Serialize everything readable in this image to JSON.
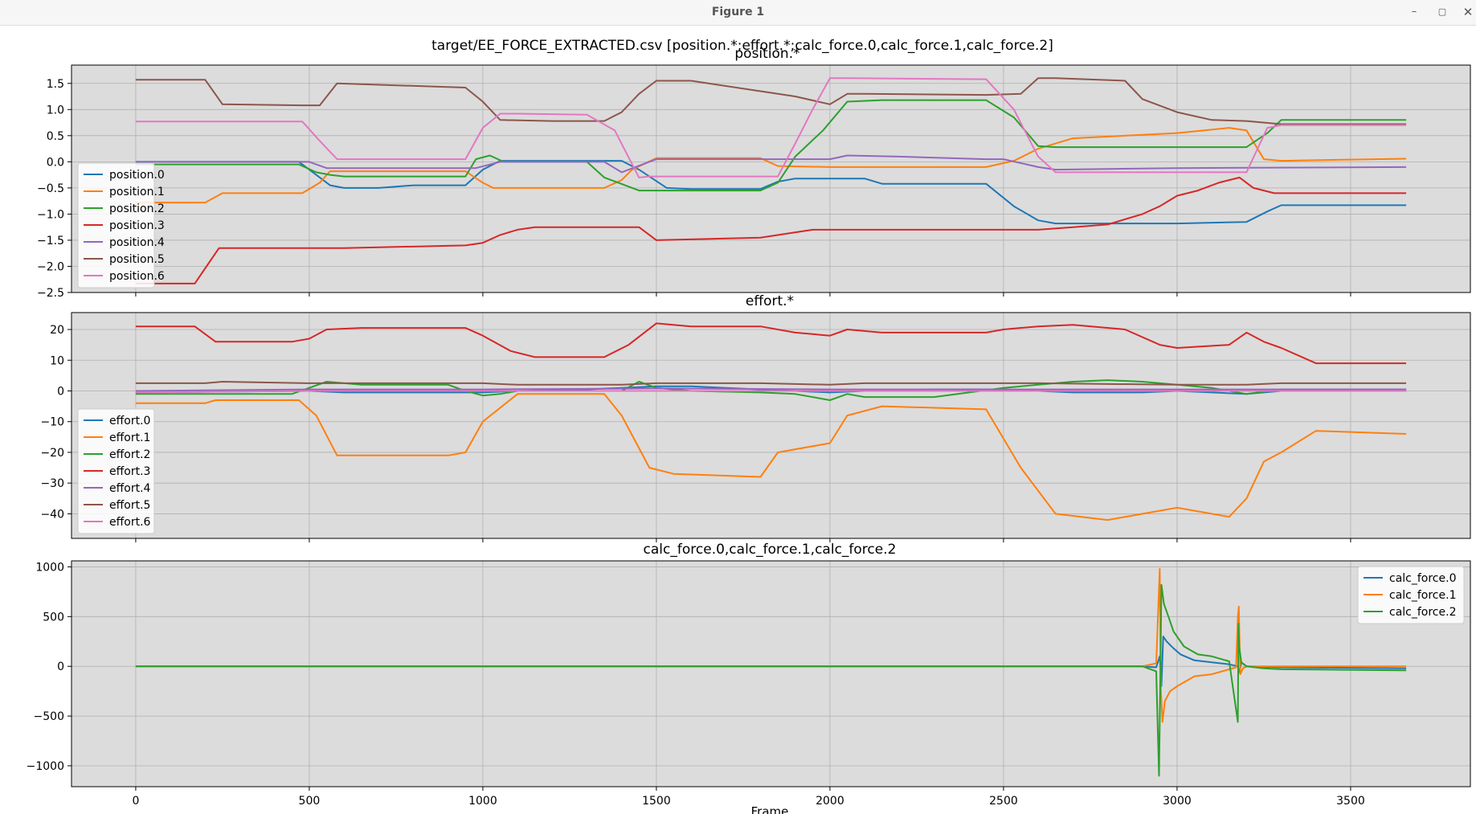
{
  "window": {
    "title": "Figure 1",
    "minimize_icon": "minimize-icon",
    "maximize_icon": "maximize-icon",
    "close_icon": "close-icon"
  },
  "figure": {
    "suptitle": "target/EE_FORCE_EXTRACTED.csv [position.*;effort.*;calc_force.0,calc_force.1,calc_force.2]",
    "xlabel": "Frame"
  },
  "colors": [
    "#1f77b4",
    "#ff7f0e",
    "#2ca02c",
    "#d62728",
    "#9467bd",
    "#8c564b",
    "#e377c2"
  ],
  "chart_data": [
    {
      "type": "line",
      "title": "position.*",
      "xlim": [
        -185,
        3845
      ],
      "ylim": [
        -2.5,
        1.85
      ],
      "xticks": [
        0,
        500,
        1000,
        1500,
        2000,
        2500,
        3000,
        3500
      ],
      "yticks": [
        -2.5,
        -2.0,
        -1.5,
        -1.0,
        -0.5,
        0.0,
        0.5,
        1.0,
        1.5
      ],
      "ytick_labels": [
        "−2.5",
        "−2.0",
        "−1.5",
        "−1.0",
        "−0.5",
        "0.0",
        "0.5",
        "1.0",
        "1.5"
      ],
      "grid": true,
      "legend": "left",
      "series": [
        {
          "name": "position.0",
          "x": [
            0,
            470,
            560,
            600,
            700,
            800,
            950,
            1000,
            1050,
            1400,
            1450,
            1530,
            1600,
            1800,
            1850,
            1900,
            2100,
            2150,
            2250,
            2450,
            2530,
            2600,
            2650,
            3000,
            3200,
            3260,
            3300,
            3660
          ],
          "y": [
            0,
            0,
            -0.45,
            -0.5,
            -0.5,
            -0.45,
            -0.45,
            -0.15,
            0.02,
            0.02,
            -0.15,
            -0.5,
            -0.52,
            -0.52,
            -0.38,
            -0.32,
            -0.32,
            -0.42,
            -0.42,
            -0.42,
            -0.85,
            -1.12,
            -1.18,
            -1.18,
            -1.15,
            -0.95,
            -0.83,
            -0.83
          ]
        },
        {
          "name": "position.1",
          "x": [
            0,
            200,
            250,
            480,
            530,
            560,
            950,
            1000,
            1030,
            1350,
            1400,
            1430,
            1500,
            1800,
            1850,
            2000,
            2450,
            2530,
            2600,
            2700,
            3000,
            3150,
            3200,
            3250,
            3300,
            3660
          ],
          "y": [
            -0.78,
            -0.78,
            -0.6,
            -0.6,
            -0.4,
            -0.18,
            -0.18,
            -0.4,
            -0.5,
            -0.5,
            -0.35,
            -0.15,
            0.07,
            0.07,
            -0.08,
            -0.1,
            -0.1,
            0.02,
            0.25,
            0.45,
            0.55,
            0.65,
            0.6,
            0.05,
            0.02,
            0.06
          ]
        },
        {
          "name": "position.2",
          "x": [
            0,
            470,
            520,
            560,
            600,
            950,
            980,
            1020,
            1060,
            1300,
            1350,
            1450,
            1500,
            1800,
            1850,
            1900,
            1980,
            2050,
            2150,
            2450,
            2530,
            2600,
            2650,
            3000,
            3200,
            3260,
            3300,
            3660
          ],
          "y": [
            -0.05,
            -0.05,
            -0.2,
            -0.25,
            -0.28,
            -0.28,
            0.05,
            0.12,
            0.0,
            0.0,
            -0.3,
            -0.55,
            -0.55,
            -0.55,
            -0.4,
            0.1,
            0.6,
            1.15,
            1.18,
            1.18,
            0.85,
            0.3,
            0.28,
            0.28,
            0.28,
            0.55,
            0.8,
            0.8
          ]
        },
        {
          "name": "position.3",
          "x": [
            0,
            170,
            240,
            300,
            600,
            950,
            1000,
            1050,
            1100,
            1150,
            1450,
            1500,
            1800,
            1950,
            2050,
            2150,
            2600,
            2700,
            2800,
            2900,
            2950,
            3000,
            3060,
            3120,
            3180,
            3220,
            3280,
            3660
          ],
          "y": [
            -2.33,
            -2.33,
            -1.65,
            -1.65,
            -1.65,
            -1.6,
            -1.55,
            -1.4,
            -1.3,
            -1.25,
            -1.25,
            -1.5,
            -1.45,
            -1.3,
            -1.3,
            -1.3,
            -1.3,
            -1.25,
            -1.2,
            -1.0,
            -0.85,
            -0.65,
            -0.55,
            -0.4,
            -0.3,
            -0.5,
            -0.6,
            -0.6
          ]
        },
        {
          "name": "position.4",
          "x": [
            0,
            500,
            550,
            980,
            1050,
            1350,
            1400,
            1500,
            1550,
            2000,
            2050,
            2200,
            2450,
            2500,
            2600,
            2650,
            3000,
            3660
          ],
          "y": [
            0,
            0,
            -0.12,
            -0.12,
            0.0,
            0.0,
            -0.2,
            0.05,
            0.05,
            0.05,
            0.12,
            0.1,
            0.05,
            0.05,
            -0.1,
            -0.15,
            -0.12,
            -0.1
          ]
        },
        {
          "name": "position.5",
          "x": [
            0,
            200,
            250,
            480,
            530,
            580,
            950,
            1000,
            1050,
            1200,
            1350,
            1400,
            1450,
            1500,
            1600,
            1850,
            1900,
            2000,
            2050,
            2100,
            2450,
            2550,
            2600,
            2650,
            2850,
            2900,
            3000,
            3100,
            3200,
            3300,
            3660
          ],
          "y": [
            1.57,
            1.57,
            1.1,
            1.08,
            1.08,
            1.5,
            1.42,
            1.15,
            0.8,
            0.78,
            0.78,
            0.95,
            1.3,
            1.55,
            1.55,
            1.3,
            1.25,
            1.1,
            1.3,
            1.3,
            1.28,
            1.3,
            1.6,
            1.6,
            1.55,
            1.2,
            0.95,
            0.8,
            0.78,
            0.72,
            0.72
          ]
        },
        {
          "name": "position.6",
          "x": [
            0,
            480,
            530,
            580,
            950,
            1000,
            1050,
            1100,
            1300,
            1380,
            1450,
            1480,
            1850,
            1900,
            1950,
            2000,
            2050,
            2450,
            2530,
            2600,
            2650,
            3000,
            3200,
            3260,
            3300,
            3660
          ],
          "y": [
            0.77,
            0.77,
            0.4,
            0.05,
            0.05,
            0.65,
            0.92,
            0.92,
            0.9,
            0.6,
            -0.3,
            -0.28,
            -0.28,
            0.35,
            1.0,
            1.6,
            1.6,
            1.58,
            1.0,
            0.1,
            -0.2,
            -0.2,
            -0.2,
            0.65,
            0.7,
            0.7
          ]
        }
      ]
    },
    {
      "type": "line",
      "title": "effort.*",
      "xlim": [
        -185,
        3845
      ],
      "ylim": [
        -48,
        25.5
      ],
      "xticks": [
        0,
        500,
        1000,
        1500,
        2000,
        2500,
        3000,
        3500
      ],
      "yticks": [
        -40,
        -30,
        -20,
        -10,
        0,
        10,
        20
      ],
      "ytick_labels": [
        "−40",
        "−30",
        "−20",
        "−10",
        "0",
        "10",
        "20"
      ],
      "grid": true,
      "legend": "left",
      "series": [
        {
          "name": "effort.0",
          "x": [
            0,
            500,
            600,
            900,
            1000,
            1100,
            1300,
            1400,
            1500,
            1600,
            1800,
            1900,
            2000,
            2100,
            2300,
            2500,
            2700,
            2900,
            3000,
            3100,
            3200,
            3300,
            3660
          ],
          "y": [
            -0.5,
            0,
            -0.5,
            -0.5,
            -0.5,
            0,
            0.5,
            1,
            1.5,
            1.5,
            0.5,
            0,
            -0.5,
            0,
            0.5,
            0.5,
            -0.5,
            -0.5,
            0,
            -0.5,
            -1,
            0,
            0
          ]
        },
        {
          "name": "effort.1",
          "x": [
            0,
            200,
            230,
            470,
            520,
            580,
            900,
            950,
            1000,
            1100,
            1350,
            1400,
            1480,
            1550,
            1800,
            1850,
            2000,
            2050,
            2150,
            2450,
            2550,
            2650,
            2800,
            3000,
            3150,
            3200,
            3250,
            3300,
            3400,
            3660
          ],
          "y": [
            -4,
            -4,
            -3,
            -3,
            -8,
            -21,
            -21,
            -20,
            -10,
            -1,
            -1,
            -8,
            -25,
            -27,
            -28,
            -20,
            -17,
            -8,
            -5,
            -6,
            -25,
            -40,
            -42,
            -38,
            -41,
            -35,
            -23,
            -20,
            -13,
            -14
          ]
        },
        {
          "name": "effort.2",
          "x": [
            0,
            450,
            500,
            550,
            650,
            900,
            950,
            1000,
            1050,
            1100,
            1400,
            1450,
            1500,
            1600,
            1800,
            1900,
            2000,
            2050,
            2100,
            2300,
            2500,
            2600,
            2700,
            2800,
            2900,
            3000,
            3100,
            3200,
            3300,
            3660
          ],
          "y": [
            -1,
            -1,
            1,
            3,
            2,
            2,
            0,
            -1.5,
            -1,
            0,
            0,
            3,
            1,
            0,
            -0.5,
            -1,
            -3,
            -1,
            -2,
            -2,
            1,
            2,
            3,
            3.5,
            3,
            2,
            1,
            -1,
            0.5,
            0.5
          ]
        },
        {
          "name": "effort.3",
          "x": [
            0,
            170,
            230,
            450,
            500,
            550,
            650,
            950,
            1000,
            1080,
            1150,
            1350,
            1420,
            1500,
            1600,
            1800,
            1900,
            2000,
            2050,
            2150,
            2450,
            2500,
            2600,
            2700,
            2850,
            2950,
            3000,
            3150,
            3200,
            3250,
            3300,
            3400,
            3660
          ],
          "y": [
            21,
            21,
            16,
            16,
            17,
            20,
            20.5,
            20.5,
            18,
            13,
            11,
            11,
            15,
            22,
            21,
            21,
            19,
            18,
            20,
            19,
            19,
            20,
            21,
            21.5,
            20,
            15,
            14,
            15,
            19,
            16,
            14,
            9,
            9
          ]
        },
        {
          "name": "effort.4",
          "x": [
            0,
            500,
            1000,
            1500,
            2000,
            2500,
            3000,
            3660
          ],
          "y": [
            0,
            0.5,
            0.5,
            0.8,
            0.5,
            0.5,
            0.5,
            0.5
          ]
        },
        {
          "name": "effort.5",
          "x": [
            0,
            200,
            250,
            500,
            700,
            1000,
            1100,
            1400,
            1500,
            1800,
            2000,
            2100,
            2500,
            2600,
            3000,
            3200,
            3300,
            3660
          ],
          "y": [
            2.5,
            2.5,
            3,
            2.5,
            2.5,
            2.5,
            2,
            2,
            2.5,
            2.5,
            2,
            2.5,
            2.5,
            2.5,
            2,
            2,
            2.5,
            2.5
          ]
        },
        {
          "name": "effort.6",
          "x": [
            0,
            500,
            1000,
            1500,
            2000,
            2500,
            3000,
            3660
          ],
          "y": [
            -0.5,
            0,
            0,
            0,
            0,
            0,
            0,
            0
          ]
        }
      ]
    },
    {
      "type": "line",
      "title": "calc_force.0,calc_force.1,calc_force.2",
      "xlim": [
        -185,
        3845
      ],
      "ylim": [
        -1210,
        1060
      ],
      "xticks": [
        0,
        500,
        1000,
        1500,
        2000,
        2500,
        3000,
        3500
      ],
      "xtick_labels": [
        "0",
        "500",
        "1000",
        "1500",
        "2000",
        "2500",
        "3000",
        "3500"
      ],
      "yticks": [
        -1000,
        -500,
        0,
        500,
        1000
      ],
      "ytick_labels": [
        "−1000",
        "−500",
        "0",
        "500",
        "1000"
      ],
      "grid": true,
      "legend": "top-right",
      "series": [
        {
          "name": "calc_force.0",
          "x": [
            0,
            2900,
            2940,
            2950,
            2955,
            2960,
            2970,
            2990,
            3010,
            3050,
            3100,
            3150,
            3175,
            3180,
            3185,
            3200,
            3300,
            3660
          ],
          "y": [
            0,
            0,
            -10,
            100,
            -200,
            300,
            250,
            180,
            120,
            60,
            40,
            20,
            0,
            -60,
            40,
            0,
            -10,
            -20
          ]
        },
        {
          "name": "calc_force.1",
          "x": [
            0,
            2900,
            2940,
            2950,
            2953,
            2958,
            2965,
            2980,
            3000,
            3050,
            3100,
            3150,
            3170,
            3175,
            3178,
            3182,
            3190,
            3200,
            3300,
            3660
          ],
          "y": [
            0,
            0,
            30,
            980,
            -200,
            -560,
            -350,
            -250,
            -200,
            -100,
            -80,
            -30,
            -10,
            500,
            600,
            -80,
            -20,
            0,
            0,
            0
          ]
        },
        {
          "name": "calc_force.2",
          "x": [
            0,
            2900,
            2940,
            2948,
            2951,
            2955,
            2962,
            2975,
            2990,
            3020,
            3060,
            3100,
            3150,
            3175,
            3177,
            3179,
            3185,
            3200,
            3250,
            3300,
            3660
          ],
          "y": [
            0,
            0,
            -50,
            -1100,
            -300,
            820,
            630,
            500,
            350,
            200,
            120,
            100,
            50,
            -560,
            430,
            200,
            40,
            0,
            -20,
            -30,
            -40
          ]
        }
      ]
    }
  ]
}
